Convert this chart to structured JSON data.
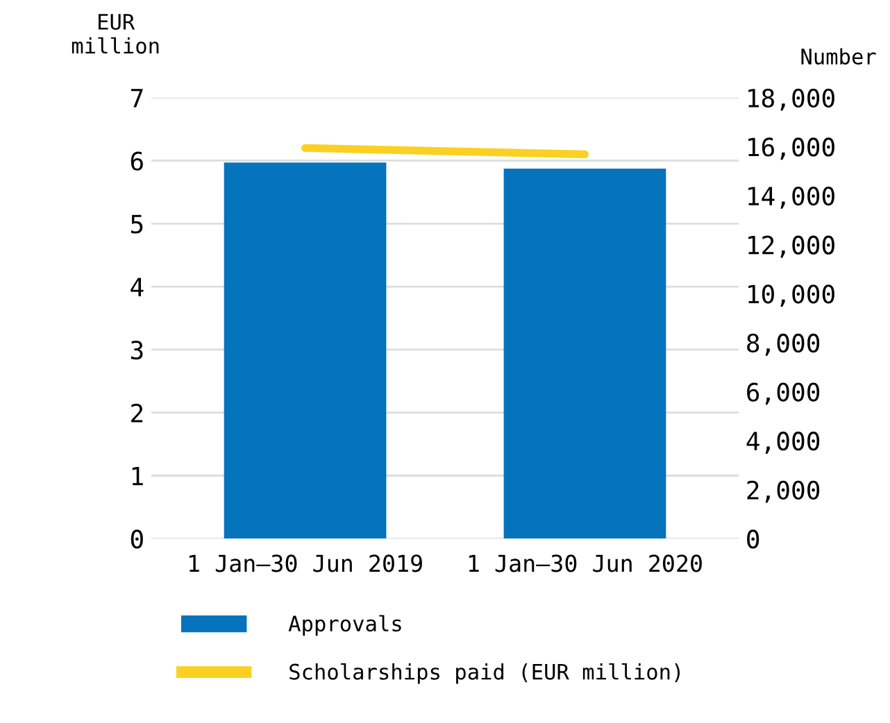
{
  "chart_data": {
    "type": "bar",
    "ylabel": "EUR\nmillion",
    "y2label": "Number",
    "categories": [
      "1 Jan–30 Jun 2019",
      "1 Jan–30 Jun 2020"
    ],
    "series": [
      {
        "name": "Approvals",
        "color": "#0673bd",
        "values": [
          15350,
          15100
        ],
        "axis": "y2"
      },
      {
        "name": "Scholarships paid (EUR million)",
        "color": "#fbd021",
        "values": [
          6.2,
          6.1
        ],
        "type": "line"
      }
    ],
    "ylim": [
      0,
      7
    ],
    "yticks": [
      0,
      1,
      2,
      3,
      4,
      5,
      6,
      7
    ],
    "y2lim": [
      0,
      18000
    ],
    "y2ticks": [
      {
        "value": 0,
        "label": "0"
      },
      {
        "value": 2000,
        "label": "2,000"
      },
      {
        "value": 4000,
        "label": "4,000"
      },
      {
        "value": 6000,
        "label": "6,000"
      },
      {
        "value": 8000,
        "label": "8,000"
      },
      {
        "value": 10000,
        "label": "10,000"
      },
      {
        "value": 12000,
        "label": "12,000"
      },
      {
        "value": 14000,
        "label": "14,000"
      },
      {
        "value": 16000,
        "label": "16,000"
      },
      {
        "value": 18000,
        "label": "18,000"
      }
    ],
    "grid": "y",
    "legend": "bottom"
  }
}
